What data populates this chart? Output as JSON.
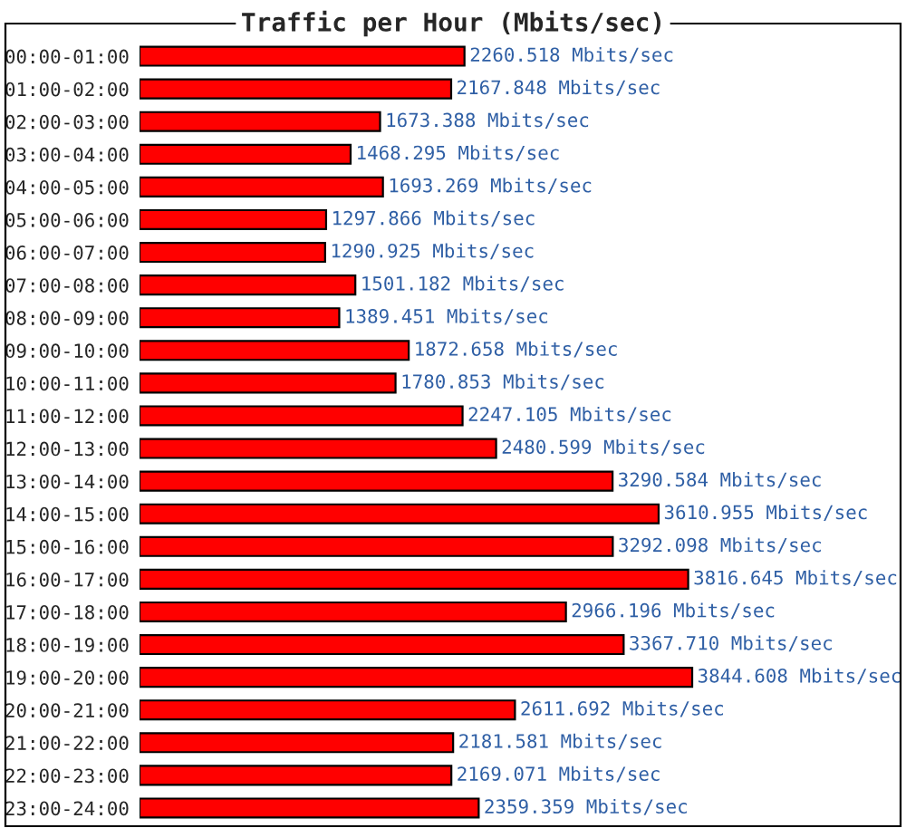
{
  "chart_data": {
    "type": "bar",
    "orientation": "horizontal",
    "title": "Traffic per Hour (Mbits/sec)",
    "categories": [
      "00:00-01:00",
      "01:00-02:00",
      "02:00-03:00",
      "03:00-04:00",
      "04:00-05:00",
      "05:00-06:00",
      "06:00-07:00",
      "07:00-08:00",
      "08:00-09:00",
      "09:00-10:00",
      "10:00-11:00",
      "11:00-12:00",
      "12:00-13:00",
      "13:00-14:00",
      "14:00-15:00",
      "15:00-16:00",
      "16:00-17:00",
      "17:00-18:00",
      "18:00-19:00",
      "19:00-20:00",
      "20:00-21:00",
      "21:00-22:00",
      "22:00-23:00",
      "23:00-24:00"
    ],
    "values": [
      2260.518,
      2167.848,
      1673.388,
      1468.295,
      1693.269,
      1297.866,
      1290.925,
      1501.182,
      1389.451,
      1872.658,
      1780.853,
      2247.105,
      2480.599,
      3290.584,
      3610.955,
      3292.098,
      3816.645,
      2966.196,
      3367.71,
      3844.608,
      2611.692,
      2181.581,
      2169.071,
      2359.359
    ],
    "value_labels": [
      "2260.518 Mbits/sec",
      "2167.848 Mbits/sec",
      "1673.388 Mbits/sec",
      "1468.295 Mbits/sec",
      "1693.269 Mbits/sec",
      "1297.866 Mbits/sec",
      "1290.925 Mbits/sec",
      "1501.182 Mbits/sec",
      "1389.451 Mbits/sec",
      "1872.658 Mbits/sec",
      "1780.853 Mbits/sec",
      "2247.105 Mbits/sec",
      "2480.599 Mbits/sec",
      "3290.584 Mbits/sec",
      "3610.955 Mbits/sec",
      "3292.098 Mbits/sec",
      "3816.645 Mbits/sec",
      "2966.196 Mbits/sec",
      "3367.710 Mbits/sec",
      "3844.608 Mbits/sec",
      "2611.692 Mbits/sec",
      "2181.581 Mbits/sec",
      "2169.071 Mbits/sec",
      "2359.359 Mbits/sec"
    ],
    "color": "#ff0000",
    "grid": false,
    "legend": false,
    "tick_labels": "y"
  }
}
